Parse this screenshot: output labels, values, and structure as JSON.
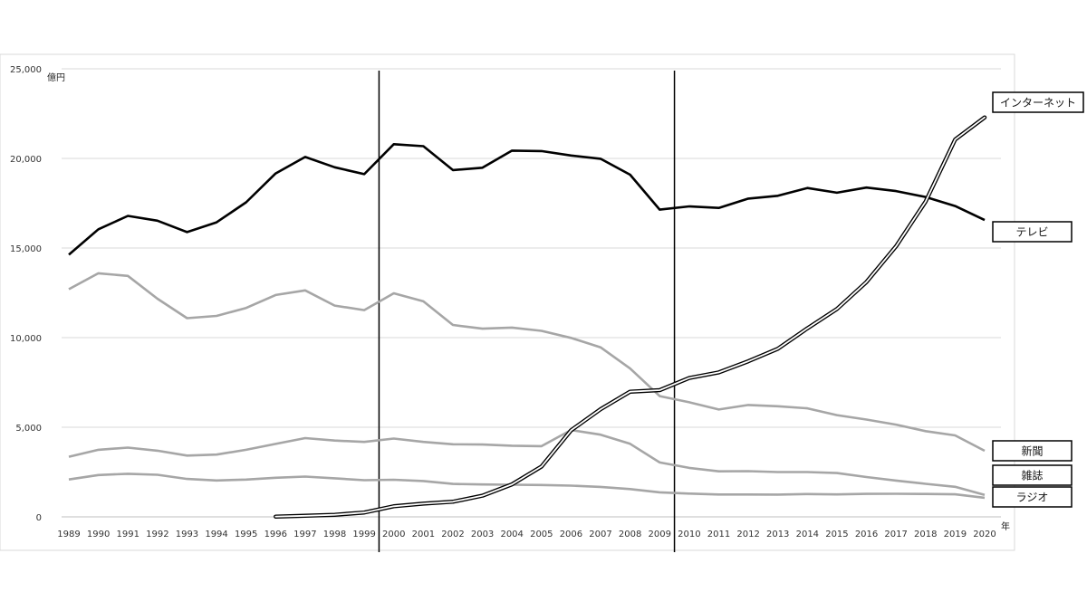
{
  "chart_data": {
    "type": "line",
    "title": "",
    "y_unit": "億円",
    "x_unit": "年",
    "ylim": [
      0,
      25000
    ],
    "yticks": [
      "0",
      "5,000",
      "10,000",
      "15,000",
      "20,000",
      "25,000"
    ],
    "ytick_values": [
      0,
      5000,
      10000,
      15000,
      20000,
      25000
    ],
    "grid": true,
    "legend_placement": "right",
    "x": [
      "1989",
      "1990",
      "1991",
      "1992",
      "1993",
      "1994",
      "1995",
      "1996",
      "1997",
      "1998",
      "1999",
      "2000",
      "2001",
      "2002",
      "2003",
      "2004",
      "2005",
      "2006",
      "2007",
      "2008",
      "2009",
      "2010",
      "2011",
      "2012",
      "2013",
      "2014",
      "2015",
      "2016",
      "2017",
      "2018",
      "2019",
      "2020"
    ],
    "vertical_markers": [
      "1999.5",
      "2009.5"
    ],
    "series": [
      {
        "name": "テレビ",
        "style": "black-thick",
        "values": [
          14627,
          16046,
          16793,
          16526,
          15891,
          16435,
          17553,
          19162,
          20079,
          19505,
          19121,
          20793,
          20681,
          19351,
          19480,
          20436,
          20411,
          20161,
          19981,
          19092,
          17139,
          17321,
          17237,
          17757,
          17913,
          18347,
          18088,
          18374,
          18178,
          17848,
          17345,
          16559
        ]
      },
      {
        "name": "新聞",
        "style": "gray",
        "values": [
          12700,
          13592,
          13445,
          12172,
          11087,
          11211,
          11657,
          12379,
          12636,
          11787,
          11535,
          12474,
          12027,
          10707,
          10500,
          10559,
          10377,
          9986,
          9462,
          8276,
          6739,
          6396,
          5990,
          6242,
          6170,
          6057,
          5679,
          5431,
          5147,
          4784,
          4547,
          3688
        ]
      },
      {
        "name": "雑誌",
        "style": "gray",
        "values": [
          3354,
          3741,
          3866,
          3692,
          3417,
          3473,
          3743,
          4073,
          4395,
          4258,
          4183,
          4369,
          4180,
          4051,
          4035,
          3970,
          3945,
          4842,
          4585,
          4078,
          3034,
          2733,
          2542,
          2551,
          2499,
          2500,
          2443,
          2223,
          2023,
          1841,
          1675,
          1223
        ]
      },
      {
        "name": "ラジオ",
        "style": "gray",
        "values": [
          2084,
          2335,
          2406,
          2350,
          2114,
          2029,
          2082,
          2181,
          2247,
          2153,
          2043,
          2071,
          1998,
          1837,
          1807,
          1795,
          1778,
          1744,
          1671,
          1549,
          1370,
          1299,
          1247,
          1246,
          1243,
          1272,
          1254,
          1285,
          1290,
          1278,
          1260,
          1066
        ]
      },
      {
        "name": "インターネット",
        "style": "double-line",
        "values": [
          null,
          null,
          null,
          null,
          null,
          null,
          null,
          16,
          60,
          114,
          241,
          590,
          735,
          845,
          1183,
          1814,
          2808,
          4826,
          6003,
          6983,
          7069,
          7747,
          8062,
          8680,
          9381,
          10519,
          11594,
          13100,
          15094,
          17589,
          21048,
          22290
        ]
      }
    ]
  }
}
